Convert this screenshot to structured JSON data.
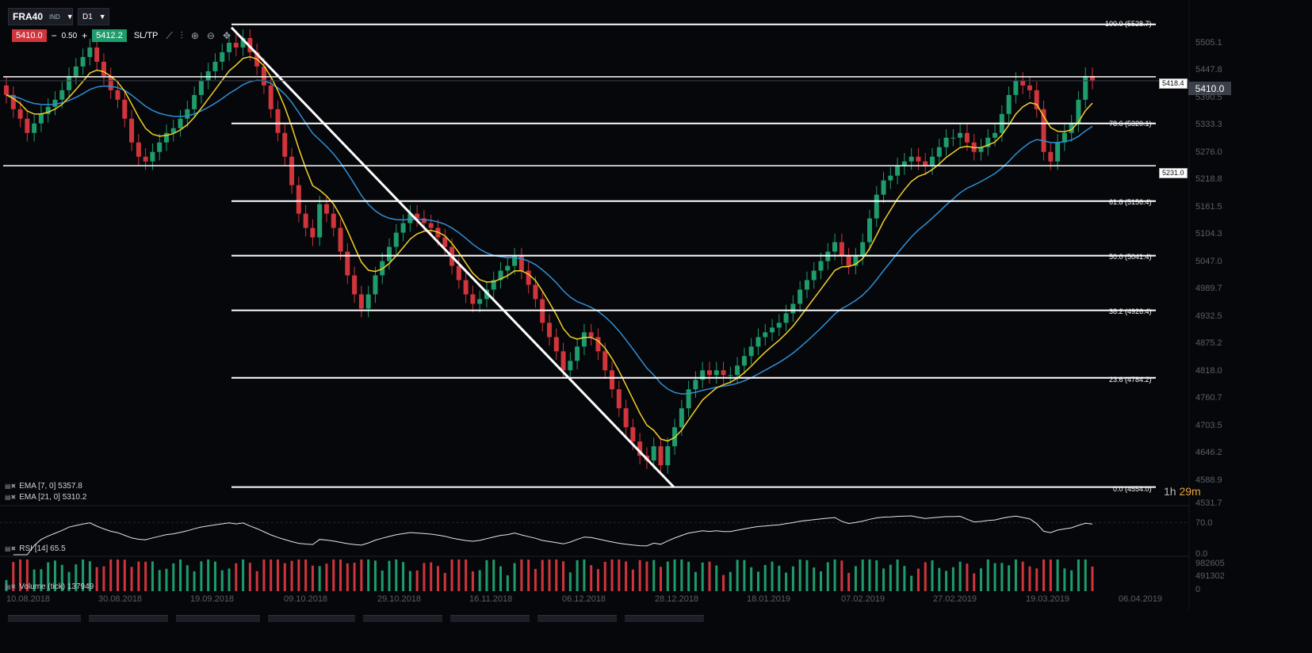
{
  "toolbar": {
    "symbol": "FRA40",
    "symbol_tag": "IND",
    "timeframe": "D1",
    "sell_price": "5410.0",
    "spread": "0.50",
    "buy_price": "5412.2",
    "sltp_label": "SL/TP",
    "minus": "−",
    "plus": "+",
    "caret": "▼"
  },
  "indicators": {
    "ema7": "EMA [7, 0] 5357.8",
    "ema21": "EMA [21, 0] 5310.2",
    "rsi": "RSI [14] 65.5",
    "volume": "Volume (tick) 137949"
  },
  "timer": {
    "hours": "1h",
    "minutes": "29m"
  },
  "current_price": "5410.0",
  "level_tags": [
    "5418.4",
    "5231.0"
  ],
  "fib_labels": [
    "100.0 (5528.7)",
    "78.6 (5320.1)",
    "61.8 (5156.4)",
    "50.0 (5041.4)",
    "38.2 (4926.4)",
    "23.6 (4784.2)",
    "0.0 (4554.0)"
  ],
  "y_axis": [
    "5505.1",
    "5447.8",
    "5390.5",
    "5333.3",
    "5276.0",
    "5218.8",
    "5161.5",
    "5104.3",
    "5047.0",
    "4989.7",
    "4932.5",
    "4875.2",
    "4818.0",
    "4760.7",
    "4703.5",
    "4646.2",
    "4588.9",
    "4531.7"
  ],
  "rsi_axis": [
    "70.0",
    "0.0"
  ],
  "volume_axis": [
    "982605",
    "491302",
    "0"
  ],
  "x_axis": [
    "10.08.2018",
    "30.08.2018",
    "19.09.2018",
    "09.10.2018",
    "29.10.2018",
    "16.11.2018",
    "06.12.2018",
    "28.12.2018",
    "18.01.2019",
    "07.02.2019",
    "27.02.2019",
    "19.03.2019",
    "06.04.2019"
  ],
  "colors": {
    "background": "#06070b",
    "bull": "#1f9c6b",
    "bear": "#d0353c",
    "ema7": "#f2d028",
    "ema21": "#2f8fd4",
    "line": "#ffffff"
  },
  "chart_data": {
    "type": "candlestick",
    "instrument": "FRA40",
    "timeframe": "D1",
    "close": [
      5380,
      5350,
      5330,
      5300,
      5320,
      5340,
      5355,
      5370,
      5390,
      5420,
      5440,
      5460,
      5480,
      5450,
      5420,
      5390,
      5370,
      5330,
      5280,
      5250,
      5240,
      5260,
      5280,
      5300,
      5310,
      5330,
      5350,
      5380,
      5410,
      5430,
      5450,
      5470,
      5490,
      5480,
      5500,
      5470,
      5440,
      5400,
      5350,
      5300,
      5250,
      5190,
      5130,
      5100,
      5080,
      5150,
      5130,
      5100,
      5050,
      5000,
      4960,
      4930,
      4960,
      5000,
      5030,
      5060,
      5090,
      5110,
      5130,
      5120,
      5110,
      5100,
      5080,
      5060,
      5020,
      4990,
      4960,
      4940,
      4950,
      4970,
      4990,
      5010,
      5020,
      5040,
      5010,
      4980,
      4950,
      4900,
      4870,
      4840,
      4800,
      4820,
      4850,
      4880,
      4870,
      4840,
      4800,
      4760,
      4720,
      4680,
      4650,
      4620,
      4610,
      4640,
      4600,
      4640,
      4680,
      4720,
      4760,
      4780,
      4800,
      4790,
      4800,
      4790,
      4790,
      4810,
      4830,
      4850,
      4870,
      4880,
      4890,
      4900,
      4920,
      4940,
      4970,
      4990,
      5010,
      5030,
      5050,
      5070,
      5040,
      5020,
      5040,
      5070,
      5120,
      5170,
      5200,
      5210,
      5230,
      5240,
      5250,
      5240,
      5230,
      5250,
      5270,
      5290,
      5290,
      5300,
      5280,
      5260,
      5270,
      5290,
      5300,
      5340,
      5380,
      5410,
      5400,
      5390,
      5350,
      5260,
      5240,
      5280,
      5300,
      5320,
      5370,
      5420,
      5410
    ],
    "ema7_last": 5357.8,
    "ema21_last": 5310.2,
    "rsi_last": 65.5,
    "volume_last": 137949,
    "fibonacci": [
      {
        "level": 100.0,
        "price": 5528.7
      },
      {
        "level": 78.6,
        "price": 5320.1
      },
      {
        "level": 61.8,
        "price": 5156.4
      },
      {
        "level": 50.0,
        "price": 5041.4
      },
      {
        "level": 38.2,
        "price": 4926.4
      },
      {
        "level": 23.6,
        "price": 4784.2
      },
      {
        "level": 0.0,
        "price": 4554.0
      }
    ],
    "horizontal_levels": [
      5418.4,
      5231.0
    ],
    "ylim": [
      4531.7,
      5540
    ]
  }
}
